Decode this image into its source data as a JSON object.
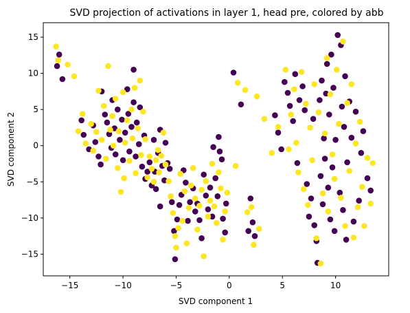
{
  "chart_data": {
    "type": "scatter",
    "title": "SVD projection of activations in layer 1, head pre, colored by abb",
    "xlabel": "SVD component 1",
    "ylabel": "SVD component 2",
    "xlim": [
      -17.5,
      15.0
    ],
    "ylim": [
      -18.0,
      17.0
    ],
    "xticks": [
      -15,
      -10,
      -5,
      0,
      5,
      10
    ],
    "yticks": [
      -15,
      -10,
      -5,
      0,
      5,
      10,
      15
    ],
    "grid": false,
    "legend": "none",
    "colors": {
      "class_0": "#440154",
      "class_1": "#fde725"
    },
    "series": [
      {
        "color_key": "class_0",
        "points": [
          [
            -16.0,
            12.6
          ],
          [
            -16.2,
            11.0
          ],
          [
            -15.7,
            9.2
          ],
          [
            -13.9,
            3.5
          ],
          [
            -13.7,
            1.5
          ],
          [
            -13.2,
            -0.5
          ],
          [
            -12.8,
            2.8
          ],
          [
            -12.6,
            0.5
          ],
          [
            -12.3,
            -1.5
          ],
          [
            -12.1,
            -2.6
          ],
          [
            -12.0,
            7.5
          ],
          [
            -11.7,
            4.3
          ],
          [
            -11.5,
            3.2
          ],
          [
            -11.3,
            1.6
          ],
          [
            -11.1,
            -0.3
          ],
          [
            -11.0,
            6.3
          ],
          [
            -10.8,
            2.4
          ],
          [
            -10.7,
            -1.2
          ],
          [
            -10.5,
            5.0
          ],
          [
            -10.3,
            0.8
          ],
          [
            -10.1,
            3.6
          ],
          [
            -10.0,
            -2.0
          ],
          [
            -9.8,
            1.8
          ],
          [
            -9.6,
            7.8
          ],
          [
            -9.5,
            4.4
          ],
          [
            -9.4,
            -0.8
          ],
          [
            -9.2,
            2.6
          ],
          [
            -9.0,
            6.0
          ],
          [
            -9.0,
            10.5
          ],
          [
            -8.8,
            -1.5
          ],
          [
            -8.7,
            3.2
          ],
          [
            -8.5,
            0.2
          ],
          [
            -8.4,
            5.3
          ],
          [
            -8.2,
            -2.9
          ],
          [
            -8.0,
            1.4
          ],
          [
            -7.9,
            -4.6
          ],
          [
            -7.7,
            -3.6
          ],
          [
            -7.5,
            -2.3
          ],
          [
            -7.3,
            -5.5
          ],
          [
            -7.1,
            0.8
          ],
          [
            -7.0,
            -3.6
          ],
          [
            -6.9,
            -6.0
          ],
          [
            -6.7,
            -1.0
          ],
          [
            -6.5,
            -8.4
          ],
          [
            -6.5,
            2.2
          ],
          [
            -6.3,
            -2.8
          ],
          [
            -6.1,
            -4.8
          ],
          [
            -6.0,
            0.4
          ],
          [
            -5.8,
            -2.4
          ],
          [
            -5.6,
            -3.2
          ],
          [
            -5.4,
            -7.8
          ],
          [
            -5.2,
            -11.8
          ],
          [
            -5.1,
            -15.7
          ],
          [
            -4.9,
            -10.2
          ],
          [
            -4.7,
            -8.2
          ],
          [
            -4.5,
            -6.8
          ],
          [
            -4.3,
            -3.4
          ],
          [
            -4.1,
            -5.1
          ],
          [
            -3.9,
            -10.4
          ],
          [
            -3.7,
            -7.8
          ],
          [
            -3.4,
            -5.9
          ],
          [
            -3.2,
            -9.1
          ],
          [
            -3.0,
            -8.0
          ],
          [
            -2.8,
            -10.3
          ],
          [
            -2.6,
            -12.8
          ],
          [
            -2.4,
            -4.0
          ],
          [
            -2.2,
            -6.9
          ],
          [
            -2.0,
            -8.8
          ],
          [
            -1.8,
            -5.8
          ],
          [
            -1.6,
            -9.8
          ],
          [
            -1.5,
            -0.2
          ],
          [
            -1.3,
            -4.5
          ],
          [
            -1.1,
            -7.0
          ],
          [
            -1.0,
            1.2
          ],
          [
            -0.9,
            -0.8
          ],
          [
            -0.7,
            -1.9
          ],
          [
            -0.6,
            -10.1
          ],
          [
            -0.4,
            -12.0
          ],
          [
            -0.3,
            -8.0
          ],
          [
            0.4,
            10.1
          ],
          [
            1.1,
            5.7
          ],
          [
            1.8,
            -11.8
          ],
          [
            2.0,
            -7.3
          ],
          [
            2.2,
            -10.6
          ],
          [
            2.4,
            -12.5
          ],
          [
            4.3,
            4.2
          ],
          [
            4.6,
            1.8
          ],
          [
            4.9,
            -0.5
          ],
          [
            5.2,
            8.8
          ],
          [
            5.5,
            7.3
          ],
          [
            5.7,
            5.5
          ],
          [
            6.0,
            3.4
          ],
          [
            6.2,
            9.9
          ],
          [
            6.4,
            -2.4
          ],
          [
            6.6,
            6.3
          ],
          [
            6.9,
            8.2
          ],
          [
            7.1,
            4.9
          ],
          [
            7.3,
            -5.3
          ],
          [
            7.5,
            -9.8
          ],
          [
            7.7,
            -7.3
          ],
          [
            7.9,
            3.7
          ],
          [
            8.0,
            -11.0
          ],
          [
            8.2,
            -13.2
          ],
          [
            8.3,
            -16.2
          ],
          [
            8.5,
            6.3
          ],
          [
            8.6,
            -4.2
          ],
          [
            8.7,
            9.0
          ],
          [
            8.8,
            -8.1
          ],
          [
            8.9,
            1.0
          ],
          [
            9.0,
            -1.8
          ],
          [
            9.1,
            7.2
          ],
          [
            9.2,
            11.3
          ],
          [
            9.3,
            -5.8
          ],
          [
            9.4,
            4.3
          ],
          [
            9.5,
            -10.2
          ],
          [
            9.6,
            12.6
          ],
          [
            9.7,
            -3.0
          ],
          [
            9.8,
            8.0
          ],
          [
            9.9,
            -11.8
          ],
          [
            10.0,
            0.8
          ],
          [
            10.2,
            15.3
          ],
          [
            10.4,
            -6.5
          ],
          [
            10.5,
            13.9
          ],
          [
            10.6,
            5.4
          ],
          [
            10.7,
            -8.9
          ],
          [
            10.8,
            2.6
          ],
          [
            10.9,
            9.6
          ],
          [
            11.0,
            -13.0
          ],
          [
            11.1,
            -2.3
          ],
          [
            11.3,
            6.1
          ],
          [
            11.5,
            1.1
          ],
          [
            11.7,
            -10.5
          ],
          [
            11.9,
            4.7
          ],
          [
            12.2,
            -7.6
          ],
          [
            12.4,
            -1.0
          ],
          [
            12.6,
            2.0
          ],
          [
            13.0,
            -4.5
          ],
          [
            13.3,
            -6.2
          ]
        ]
      },
      {
        "color_key": "class_1",
        "points": [
          [
            -16.3,
            13.7
          ],
          [
            -16.1,
            11.8
          ],
          [
            -15.2,
            11.2
          ],
          [
            -14.6,
            9.6
          ],
          [
            -14.2,
            2.0
          ],
          [
            -13.8,
            4.4
          ],
          [
            -13.5,
            0.3
          ],
          [
            -13.0,
            3.0
          ],
          [
            -12.8,
            -0.7
          ],
          [
            -12.5,
            1.9
          ],
          [
            -12.3,
            7.6
          ],
          [
            -12.0,
            0.8
          ],
          [
            -11.8,
            5.5
          ],
          [
            -11.6,
            -1.8
          ],
          [
            -11.4,
            11.0
          ],
          [
            -11.2,
            2.2
          ],
          [
            -11.0,
            4.1
          ],
          [
            -10.9,
            0.0
          ],
          [
            -10.7,
            6.5
          ],
          [
            -10.5,
            -3.1
          ],
          [
            -10.4,
            2.0
          ],
          [
            -10.2,
            -6.4
          ],
          [
            -10.0,
            7.4
          ],
          [
            -9.9,
            -4.5
          ],
          [
            -9.8,
            0.4
          ],
          [
            -9.6,
            3.5
          ],
          [
            -9.4,
            -2.1
          ],
          [
            -9.2,
            5.0
          ],
          [
            -9.1,
            1.0
          ],
          [
            -8.9,
            8.0
          ],
          [
            -8.8,
            -3.8
          ],
          [
            -8.6,
            2.4
          ],
          [
            -8.4,
            9.0
          ],
          [
            -8.3,
            -1.3
          ],
          [
            -8.1,
            4.7
          ],
          [
            -7.9,
            0.9
          ],
          [
            -7.7,
            -4.4
          ],
          [
            -7.5,
            -1.5
          ],
          [
            -7.3,
            -3.2
          ],
          [
            -7.1,
            -5.0
          ],
          [
            -6.9,
            -2.0
          ],
          [
            -6.7,
            -0.6
          ],
          [
            -6.6,
            -3.7
          ],
          [
            -6.4,
            -1.4
          ],
          [
            -6.2,
            1.8
          ],
          [
            -6.0,
            -2.6
          ],
          [
            -5.7,
            -4.9
          ],
          [
            -5.5,
            -7.0
          ],
          [
            -5.3,
            -9.3
          ],
          [
            -5.1,
            -12.5
          ],
          [
            -5.0,
            -14.1
          ],
          [
            -4.8,
            -11.4
          ],
          [
            -4.6,
            -3.9
          ],
          [
            -4.4,
            -10.4
          ],
          [
            -4.2,
            -6.3
          ],
          [
            -4.0,
            -13.5
          ],
          [
            -3.8,
            -8.6
          ],
          [
            -3.6,
            -5.5
          ],
          [
            -3.4,
            -3.1
          ],
          [
            -3.2,
            -7.3
          ],
          [
            -3.0,
            -11.6
          ],
          [
            -2.8,
            -8.3
          ],
          [
            -2.6,
            -6.1
          ],
          [
            -2.4,
            -15.3
          ],
          [
            -2.2,
            -4.9
          ],
          [
            -2.0,
            -9.8
          ],
          [
            -1.8,
            -7.6
          ],
          [
            -1.6,
            -2.5
          ],
          [
            -1.4,
            -8.4
          ],
          [
            -1.2,
            -10.7
          ],
          [
            -1.0,
            -3.7
          ],
          [
            -0.8,
            -5.9
          ],
          [
            -0.6,
            -13.0
          ],
          [
            -0.4,
            -9.1
          ],
          [
            -0.2,
            -6.5
          ],
          [
            0.6,
            -2.8
          ],
          [
            0.8,
            8.7
          ],
          [
            1.5,
            7.7
          ],
          [
            1.7,
            -9.2
          ],
          [
            2.1,
            -8.5
          ],
          [
            2.3,
            -13.7
          ],
          [
            2.6,
            6.8
          ],
          [
            2.8,
            -11.5
          ],
          [
            3.3,
            3.7
          ],
          [
            4.0,
            -1.0
          ],
          [
            4.6,
            2.6
          ],
          [
            5.3,
            10.5
          ],
          [
            5.6,
            -0.5
          ],
          [
            5.8,
            4.3
          ],
          [
            6.1,
            7.8
          ],
          [
            6.3,
            0.4
          ],
          [
            6.5,
            -3.7
          ],
          [
            6.8,
            10.2
          ],
          [
            7.0,
            -6.0
          ],
          [
            7.2,
            5.8
          ],
          [
            7.4,
            -8.2
          ],
          [
            7.6,
            2.5
          ],
          [
            7.8,
            -2.0
          ],
          [
            8.0,
            8.5
          ],
          [
            8.2,
            -12.8
          ],
          [
            8.4,
            4.6
          ],
          [
            8.6,
            -16.3
          ],
          [
            8.8,
            -6.6
          ],
          [
            9.0,
            1.7
          ],
          [
            9.2,
            12.1
          ],
          [
            9.3,
            -9.1
          ],
          [
            9.5,
            7.1
          ],
          [
            9.7,
            -1.2
          ],
          [
            9.9,
            -4.6
          ],
          [
            10.1,
            10.5
          ],
          [
            10.3,
            3.0
          ],
          [
            10.5,
            -7.2
          ],
          [
            10.7,
            14.4
          ],
          [
            10.9,
            -11.1
          ],
          [
            11.1,
            5.9
          ],
          [
            11.3,
            -3.5
          ],
          [
            11.5,
            8.5
          ],
          [
            11.7,
            -12.7
          ],
          [
            11.9,
            0.3
          ],
          [
            12.1,
            -8.5
          ],
          [
            12.3,
            3.3
          ],
          [
            12.5,
            -5.7
          ],
          [
            12.7,
            -11.1
          ],
          [
            13.0,
            -1.7
          ],
          [
            13.3,
            -8.0
          ],
          [
            13.5,
            -2.4
          ]
        ]
      }
    ]
  }
}
